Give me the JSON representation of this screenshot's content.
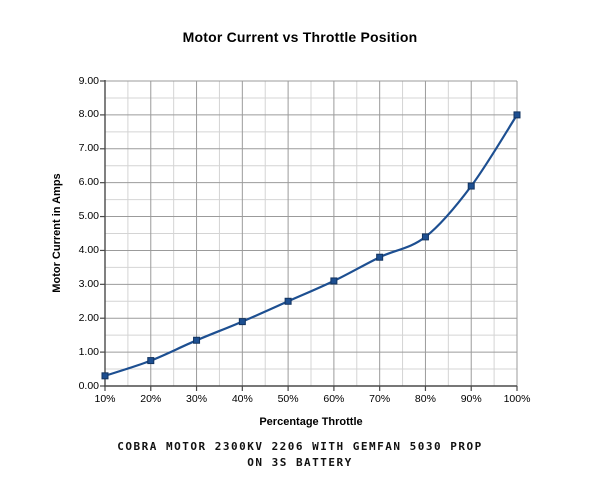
{
  "chart_data": {
    "type": "line",
    "title": "Motor Current vs Throttle Position",
    "xlabel": "Percentage Throttle",
    "ylabel": "Motor Current in Amps",
    "categories": [
      "10%",
      "20%",
      "30%",
      "40%",
      "50%",
      "60%",
      "70%",
      "80%",
      "90%",
      "100%"
    ],
    "series": [
      {
        "name": "Motor Current",
        "values": [
          0.3,
          0.75,
          1.35,
          1.9,
          2.5,
          3.1,
          3.8,
          4.4,
          5.9,
          8.0
        ]
      }
    ],
    "ylim": [
      0,
      9
    ],
    "y_major_step": 1.0,
    "y_minor_step": 0.5,
    "x_minor_divisions": 2,
    "y_tick_labels": [
      "0.00",
      "1.00",
      "2.00",
      "3.00",
      "4.00",
      "5.00",
      "6.00",
      "7.00",
      "8.00",
      "9.00"
    ],
    "grid": "major+minor",
    "legend": "none",
    "line_smoothing": true,
    "marker": "square",
    "colors": {
      "line": "#1d4f91",
      "marker": "#1d4f91",
      "marker_edge": "#12335f",
      "grid_major": "#9b9b9b",
      "grid_minor": "#d4d4d4",
      "axis": "#4a4a4a",
      "text": "#000000",
      "background": "#ffffff"
    }
  },
  "caption": {
    "line1": "Cobra Motor 2300KV 2206 with Gemfan 5030 Prop",
    "line2": "on 3S Battery"
  }
}
